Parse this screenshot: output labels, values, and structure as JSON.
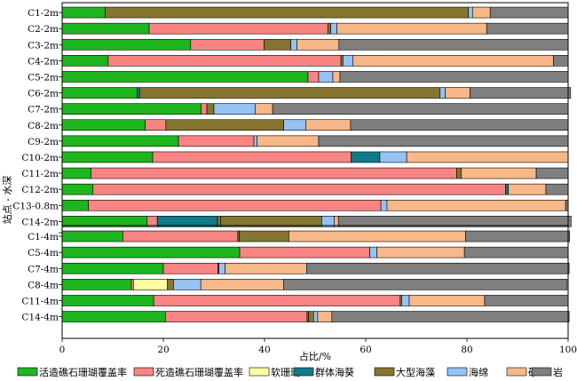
{
  "chart_data": {
    "type": "bar",
    "orientation": "horizontal",
    "stacked": true,
    "xlabel": "占比/%",
    "ylabel": "站点 - 水深",
    "xlim": [
      0,
      100
    ],
    "xticks": [
      0,
      20,
      40,
      60,
      80,
      100
    ],
    "grid": false,
    "legend_position": "bottom",
    "categories": [
      "活造礁石珊瑚覆盖率",
      "死造礁石珊瑚覆盖率",
      "软珊瑚",
      "群体海葵",
      "大型海藻",
      "海绵",
      "砂",
      "岩"
    ],
    "colors": [
      "#1fb51f",
      "#f98484",
      "#ffffa0",
      "#117a8b",
      "#857530",
      "#94c3f4",
      "#f6b888",
      "#7f7f7f"
    ],
    "groups": [
      {
        "stations": [
          {
            "label": "C1-2m",
            "values": [
              8.5,
              0,
              0,
              0,
              0,
              0.8,
              0,
              0
            ],
            "gaps": {
              "4": 71.8,
              "6": 3.5,
              "7": 15.4
            }
          },
          {
            "label": "C2-2m",
            "values": [
              17.2,
              35.3,
              0,
              0,
              0.6,
              1.2,
              29.6,
              16.1
            ]
          },
          {
            "label": "C3-2m",
            "values": [
              25.4,
              14.5,
              0,
              0,
              0,
              1.2,
              8.3,
              45.3
            ],
            "gaps": {
              "4": 5.3
            }
          },
          {
            "label": "C4-2m",
            "values": [
              9.1,
              46.0,
              0,
              0,
              0,
              2.0,
              39.6,
              2.9
            ],
            "gaps": {
              "4": 0.4
            }
          },
          {
            "label": "C5-2m",
            "values": [
              48.6,
              2.1,
              0,
              0,
              0,
              2.8,
              1.4,
              45.1
            ]
          },
          {
            "label": "C6-2m",
            "values": [
              14.8,
              0,
              0,
              0,
              59.4,
              1.0,
              4.9,
              19.9
            ],
            "gaps": {
              "3": 0.5
            }
          },
          {
            "label": "C7-2m",
            "values": [
              27.5,
              1.1,
              0,
              0,
              1.4,
              8.2,
              3.4,
              58.4
            ]
          },
          {
            "label": "C8-2m",
            "values": [
              16.4,
              4.1,
              0,
              0,
              23.3,
              4.4,
              8.8,
              43.0
            ]
          },
          {
            "label": "C9-2m",
            "values": [
              23.0,
              14.9,
              0,
              0,
              0,
              0.6,
              12.2,
              49.3
            ]
          },
          {
            "label": "C10-2m",
            "values": [
              17.9,
              39.2,
              0,
              5.7,
              0,
              5.3,
              31.9,
              0
            ]
          },
          {
            "label": "C11-2m",
            "values": [
              5.7,
              72.3,
              0,
              0,
              0.9,
              0,
              14.8,
              6.3
            ]
          },
          {
            "label": "C12-2m",
            "values": [
              6.1,
              81.5,
              0,
              0.6,
              0,
              0,
              7.4,
              4.4
            ]
          },
          {
            "label": "C13-0.8m",
            "values": [
              5.2,
              57.8,
              0,
              0,
              0,
              1.2,
              35.3,
              0.5
            ]
          },
          {
            "label": "C14-2m",
            "values": [
              16.8,
              2.0,
              0,
              11.9,
              20.0,
              2.5,
              0.8,
              46.0
            ],
            "gaps": {
              "4": 0.6
            }
          }
        ]
      },
      {
        "stations": [
          {
            "label": "C1-4m",
            "values": [
              12.0,
              22.7,
              0,
              0,
              9.8,
              0,
              34.9,
              20.6
            ],
            "gaps": {
              "4": 0.3
            }
          },
          {
            "label": "C5-4m",
            "values": [
              35.1,
              25.7,
              0,
              0,
              0,
              1.4,
              17.3,
              20.5
            ]
          },
          {
            "label": "C7-4m",
            "values": [
              20.0,
              10.8,
              0,
              0,
              0,
              1.2,
              16.1,
              51.9
            ],
            "gaps": {
              "4": 0.2
            }
          },
          {
            "label": "C8-4m",
            "values": [
              13.7,
              0.4,
              6.7,
              0,
              0,
              5.4,
              16.4,
              56.0
            ],
            "gaps": {
              "4": 1.2
            }
          },
          {
            "label": "C11-4m",
            "values": [
              18.1,
              48.7,
              0,
              0,
              0,
              1.5,
              14.9,
              16.5
            ],
            "gaps": {
              "4": 0.3
            }
          },
          {
            "label": "C14-4m",
            "values": [
              20.4,
              28.0,
              0,
              0,
              1.0,
              0.8,
              2.8,
              46.9
            ],
            "gaps": {
              "4": 0.3
            }
          }
        ]
      }
    ]
  }
}
